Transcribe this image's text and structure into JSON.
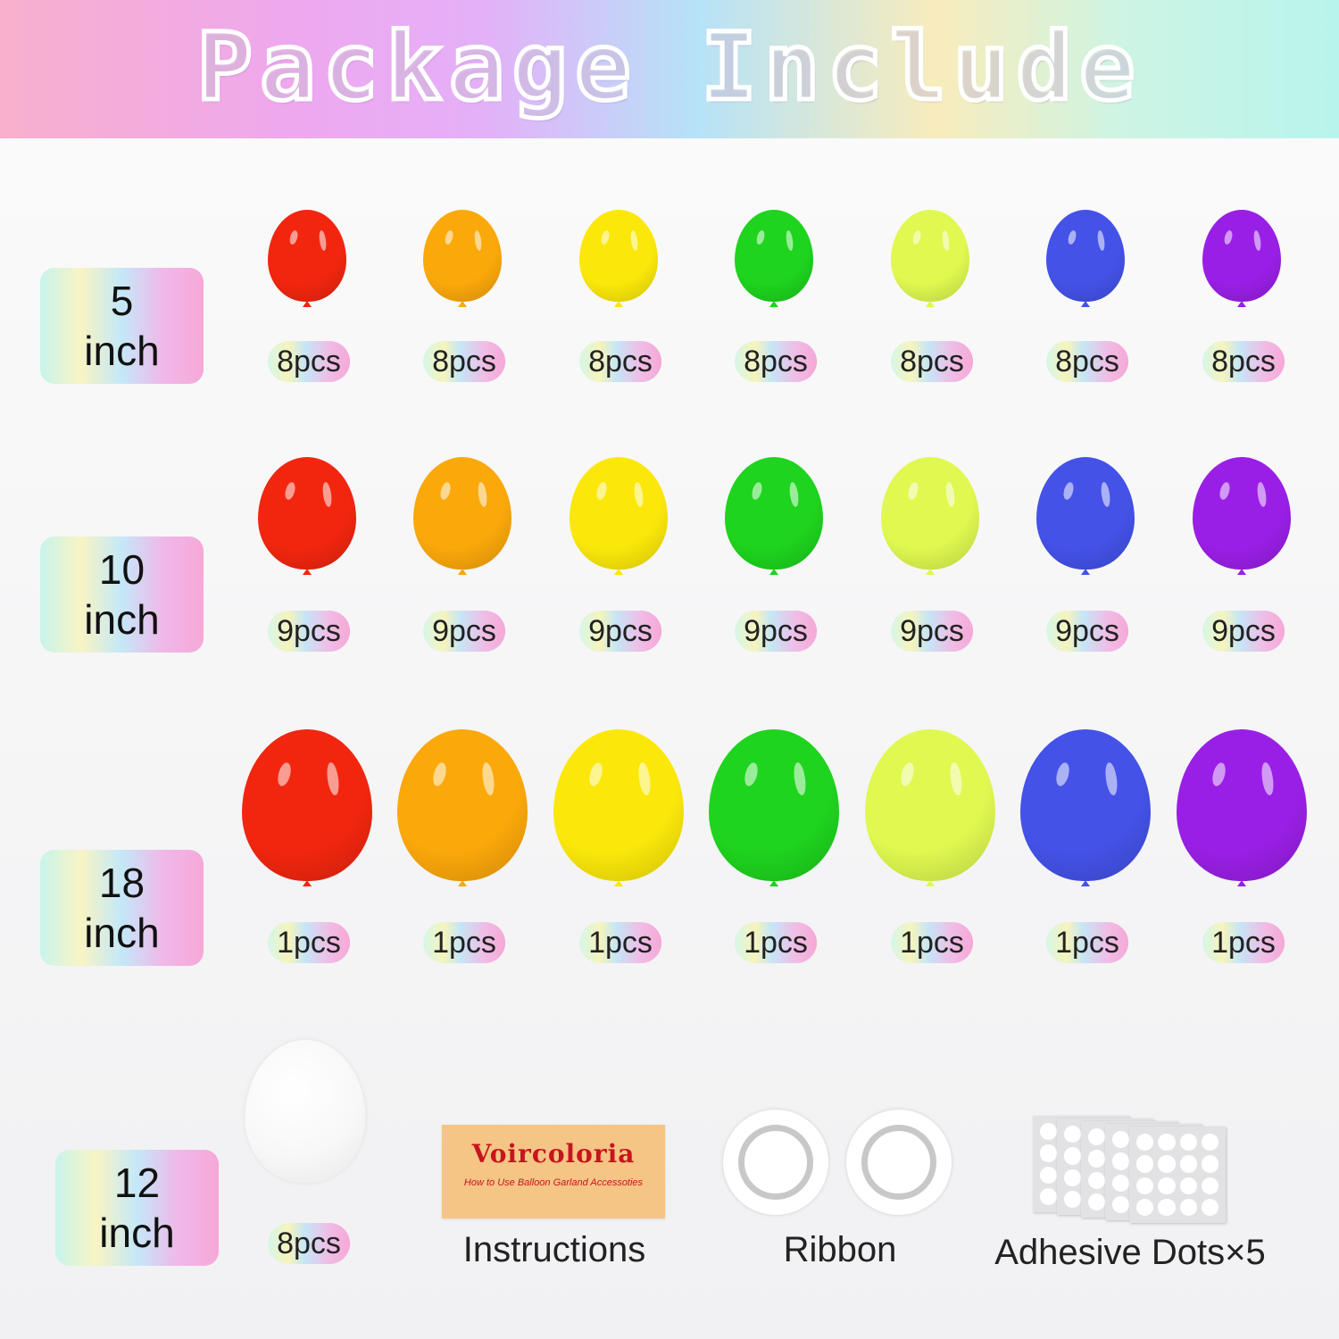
{
  "title": "Package Include",
  "colors": {
    "red": "#f2260f",
    "orange": "#fba80a",
    "yellow": "#fbe80a",
    "green": "#1ed41e",
    "lime": "#e0f850",
    "blue": "#4452e8",
    "purple": "#9a1fe6",
    "white": "#ffffff"
  },
  "rows": [
    {
      "size_number": "5",
      "size_unit": "inch",
      "balloon_colors": [
        "red",
        "orange",
        "yellow",
        "green",
        "lime",
        "blue",
        "purple"
      ],
      "quantities": [
        "8pcs",
        "8pcs",
        "8pcs",
        "8pcs",
        "8pcs",
        "8pcs",
        "8pcs"
      ]
    },
    {
      "size_number": "10",
      "size_unit": "inch",
      "balloon_colors": [
        "red",
        "orange",
        "yellow",
        "green",
        "lime",
        "blue",
        "purple"
      ],
      "quantities": [
        "9pcs",
        "9pcs",
        "9pcs",
        "9pcs",
        "9pcs",
        "9pcs",
        "9pcs"
      ]
    },
    {
      "size_number": "18",
      "size_unit": "inch",
      "balloon_colors": [
        "red",
        "orange",
        "yellow",
        "green",
        "lime",
        "blue",
        "purple"
      ],
      "quantities": [
        "1pcs",
        "1pcs",
        "1pcs",
        "1pcs",
        "1pcs",
        "1pcs",
        "1pcs"
      ]
    }
  ],
  "white_row": {
    "size_number": "12",
    "size_unit": "inch",
    "balloon_color": "white",
    "quantity": "8pcs"
  },
  "accessories": {
    "instructions": {
      "brand": "Voircoloria",
      "subtitle": "How to Use Balloon Garland Accessoties",
      "label": "Instructions"
    },
    "ribbon": {
      "label": "Ribbon"
    },
    "adhesive_dots": {
      "label": "Adhesive Dots×5"
    }
  }
}
